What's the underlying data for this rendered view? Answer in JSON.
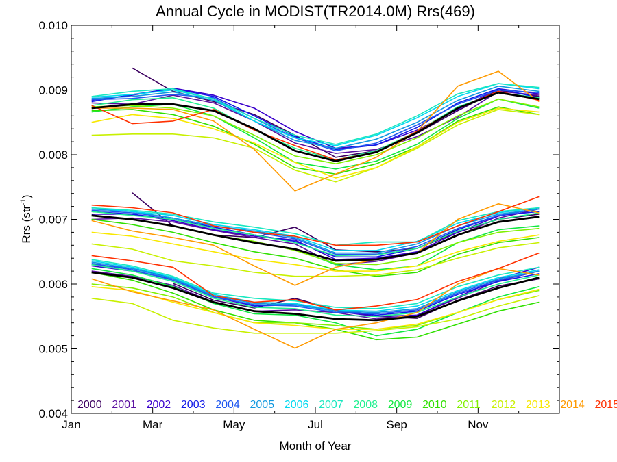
{
  "chart_data": {
    "type": "line",
    "title": "Annual Cycle in MODIST(TR2014.0M) Rrs(469)",
    "xlabel": "Month of Year",
    "ylabel_base": "Rrs (str",
    "ylabel_sup": "-1",
    "ylabel_close": ")",
    "xlim": [
      1,
      13
    ],
    "ylim": [
      0.004,
      0.01
    ],
    "x_ticks": [
      {
        "value": 1,
        "label": "Jan"
      },
      {
        "value": 3,
        "label": "Mar"
      },
      {
        "value": 5,
        "label": "May"
      },
      {
        "value": 7,
        "label": "Jul"
      },
      {
        "value": 9,
        "label": "Sep"
      },
      {
        "value": 11,
        "label": "Nov"
      }
    ],
    "y_ticks": [
      {
        "value": 0.004,
        "label": "0.004"
      },
      {
        "value": 0.005,
        "label": "0.005"
      },
      {
        "value": 0.006,
        "label": "0.006"
      },
      {
        "value": 0.007,
        "label": "0.007"
      },
      {
        "value": 0.008,
        "label": "0.008"
      },
      {
        "value": 0.009,
        "label": "0.009"
      },
      {
        "value": 0.01,
        "label": "0.010"
      }
    ],
    "grid": false,
    "legend_placement": "bottom",
    "months": [
      1.5,
      2.5,
      3.5,
      4.5,
      5.5,
      6.5,
      7.5,
      8.5,
      9.5,
      10.5,
      11.5,
      12.5
    ],
    "series": [
      {
        "name": "2000",
        "color": "#3c0060",
        "upper": [
          null,
          0.00934,
          0.00898,
          0.00882,
          0.00862,
          0.0083,
          0.00796,
          0.00806,
          0.00833,
          0.00868,
          0.009,
          0.0089
        ],
        "middle": [
          null,
          0.00741,
          0.0069,
          0.00676,
          0.00672,
          0.00688,
          0.00653,
          0.0065,
          0.00655,
          0.0068,
          0.007,
          0.00708
        ],
        "lower": [
          null,
          null,
          0.00601,
          0.00575,
          0.00563,
          0.00578,
          0.0056,
          0.0055,
          0.00547,
          0.00575,
          0.00597,
          0.00608
        ]
      },
      {
        "name": "2001",
        "color": "#5a10a0",
        "upper": [
          0.0088,
          0.00878,
          0.00892,
          0.0088,
          0.00852,
          0.00818,
          0.00802,
          0.00808,
          0.00828,
          0.00858,
          0.00898,
          0.00892
        ],
        "middle": [
          0.007,
          0.00702,
          0.00696,
          0.00683,
          0.00672,
          0.00662,
          0.0063,
          0.00635,
          0.00648,
          0.00675,
          0.00702,
          0.00716
        ],
        "lower": [
          0.0062,
          0.00612,
          0.00598,
          0.00572,
          0.00558,
          0.0056,
          0.00556,
          0.00546,
          0.00552,
          0.00578,
          0.00605,
          0.0062
        ]
      },
      {
        "name": "2002",
        "color": "#3a00cc",
        "upper": [
          0.00884,
          0.00892,
          0.00903,
          0.00892,
          0.00872,
          0.00836,
          0.0081,
          0.00815,
          0.00838,
          0.0087,
          0.00902,
          0.00894
        ],
        "middle": [
          0.00708,
          0.00708,
          0.00698,
          0.00684,
          0.00674,
          0.00668,
          0.00638,
          0.0064,
          0.0065,
          0.0068,
          0.00705,
          0.00718
        ],
        "lower": [
          0.00628,
          0.0062,
          0.00608,
          0.0058,
          0.00566,
          0.0057,
          0.00558,
          0.0055,
          0.00552,
          0.0058,
          0.00608,
          0.00626
        ]
      },
      {
        "name": "2003",
        "color": "#1018e8",
        "upper": [
          0.00882,
          0.00893,
          0.00902,
          0.0089,
          0.0086,
          0.00828,
          0.00808,
          0.00815,
          0.00842,
          0.0088,
          0.00902,
          0.00888
        ],
        "middle": [
          0.00712,
          0.00708,
          0.007,
          0.00688,
          0.00676,
          0.00666,
          0.00642,
          0.00642,
          0.00655,
          0.00684,
          0.00706,
          0.00712
        ],
        "lower": [
          0.0063,
          0.00624,
          0.0061,
          0.00582,
          0.00566,
          0.00568,
          0.0056,
          0.00552,
          0.00558,
          0.00584,
          0.00604,
          0.00616
        ]
      },
      {
        "name": "2004",
        "color": "#2058f0",
        "upper": [
          0.00885,
          0.00887,
          0.00893,
          0.00888,
          0.00856,
          0.00826,
          0.00806,
          0.00818,
          0.00846,
          0.00878,
          0.009,
          0.00896
        ],
        "middle": [
          0.00714,
          0.0071,
          0.00702,
          0.0069,
          0.0068,
          0.0067,
          0.00646,
          0.00646,
          0.00658,
          0.00686,
          0.00706,
          0.00716
        ],
        "lower": [
          0.00632,
          0.00622,
          0.00606,
          0.0058,
          0.00568,
          0.00566,
          0.00556,
          0.00554,
          0.0056,
          0.00586,
          0.00606,
          0.0062
        ]
      },
      {
        "name": "2005",
        "color": "#1098e0",
        "upper": [
          0.00887,
          0.0089,
          0.00897,
          0.00884,
          0.00852,
          0.00822,
          0.0081,
          0.00824,
          0.0085,
          0.00884,
          0.00906,
          0.00898
        ],
        "middle": [
          0.00716,
          0.00712,
          0.00702,
          0.0069,
          0.00682,
          0.00672,
          0.00648,
          0.00648,
          0.00662,
          0.0069,
          0.00708,
          0.00716
        ],
        "lower": [
          0.00634,
          0.00624,
          0.00608,
          0.00582,
          0.0057,
          0.00568,
          0.00558,
          0.00556,
          0.00562,
          0.00588,
          0.00608,
          0.0062
        ]
      },
      {
        "name": "2006",
        "color": "#00d8f0",
        "upper": [
          0.00889,
          0.00893,
          0.009,
          0.00886,
          0.00852,
          0.00826,
          0.00814,
          0.0083,
          0.00857,
          0.0089,
          0.0091,
          0.00902
        ],
        "middle": [
          0.00718,
          0.00712,
          0.00706,
          0.00692,
          0.00684,
          0.00674,
          0.00652,
          0.00652,
          0.00666,
          0.00694,
          0.0071,
          0.00718
        ],
        "lower": [
          0.00636,
          0.00626,
          0.0061,
          0.00584,
          0.00572,
          0.0057,
          0.0056,
          0.00558,
          0.00566,
          0.0059,
          0.0061,
          0.00622
        ]
      },
      {
        "name": "2007",
        "color": "#18e8c0",
        "upper": [
          0.0089,
          0.00898,
          0.00902,
          0.00886,
          0.00856,
          0.0083,
          0.00816,
          0.00832,
          0.0086,
          0.00894,
          0.0091,
          0.00904
        ],
        "middle": [
          0.00718,
          0.00714,
          0.00708,
          0.00696,
          0.00688,
          0.00678,
          0.0066,
          0.00665,
          0.00665,
          0.00698,
          0.00712,
          0.00718
        ],
        "lower": [
          0.00638,
          0.00628,
          0.00612,
          0.00586,
          0.00578,
          0.00574,
          0.00564,
          0.00562,
          0.0057,
          0.00596,
          0.00614,
          0.00626
        ]
      },
      {
        "name": "2008",
        "color": "#20f090",
        "upper": [
          0.00876,
          0.00885,
          0.00888,
          0.00872,
          0.00838,
          0.0081,
          0.00792,
          0.00806,
          0.00836,
          0.00874,
          0.00896,
          0.00888
        ],
        "middle": [
          0.00712,
          0.00706,
          0.007,
          0.00686,
          0.00676,
          0.00664,
          0.00644,
          0.00645,
          0.00655,
          0.00682,
          0.007,
          0.0071
        ],
        "lower": [
          0.0063,
          0.0062,
          0.00604,
          0.00578,
          0.00564,
          0.00562,
          0.00552,
          0.0055,
          0.00556,
          0.0058,
          0.006,
          0.00614
        ]
      },
      {
        "name": "2009",
        "color": "#10e840",
        "upper": [
          0.00866,
          0.00874,
          0.00878,
          0.0086,
          0.00826,
          0.00788,
          0.00778,
          0.0079,
          0.00816,
          0.00856,
          0.00886,
          0.00872
        ],
        "middle": [
          0.00706,
          0.007,
          0.0069,
          0.00676,
          0.00664,
          0.00654,
          0.0063,
          0.00622,
          0.00628,
          0.00664,
          0.00684,
          0.0069
        ],
        "lower": [
          0.00624,
          0.00614,
          0.00596,
          0.0057,
          0.00554,
          0.00552,
          0.0054,
          0.0052,
          0.0053,
          0.00556,
          0.0058,
          0.00596
        ]
      },
      {
        "name": "2010",
        "color": "#30e000",
        "upper": [
          0.00868,
          0.0087,
          0.00862,
          0.00844,
          0.00816,
          0.0078,
          0.0077,
          0.00786,
          0.00812,
          0.00852,
          0.00874,
          0.00862
        ],
        "middle": [
          0.007,
          0.00692,
          0.0068,
          0.00664,
          0.0065,
          0.0064,
          0.00622,
          0.00612,
          0.00618,
          0.00646,
          0.00664,
          0.00672
        ],
        "lower": [
          0.00618,
          0.00606,
          0.00586,
          0.0056,
          0.00544,
          0.0054,
          0.0053,
          0.00514,
          0.00518,
          0.00538,
          0.00558,
          0.00572
        ]
      },
      {
        "name": "2011",
        "color": "#80f000",
        "upper": [
          0.00874,
          0.00876,
          0.00872,
          0.0086,
          0.0083,
          0.00798,
          0.00786,
          0.008,
          0.00826,
          0.0086,
          0.00886,
          0.00874
        ],
        "middle": [
          0.00706,
          0.007,
          0.0069,
          0.00676,
          0.00666,
          0.00652,
          0.00632,
          0.0063,
          0.0064,
          0.00664,
          0.0068,
          0.00686
        ],
        "lower": [
          0.006,
          0.00594,
          0.0058,
          0.00556,
          0.0054,
          0.0054,
          0.00536,
          0.0053,
          0.00536,
          0.00556,
          0.00576,
          0.0059
        ]
      },
      {
        "name": "2012",
        "color": "#c8f000",
        "upper": [
          0.0083,
          0.00832,
          0.00832,
          0.00826,
          0.0081,
          0.00776,
          0.00758,
          0.0078,
          0.0081,
          0.00846,
          0.0087,
          0.00862
        ],
        "middle": [
          0.00662,
          0.00654,
          0.00636,
          0.00628,
          0.00618,
          0.00612,
          0.00612,
          0.00614,
          0.00622,
          0.0064,
          0.00656,
          0.00664
        ],
        "lower": [
          0.00578,
          0.0057,
          0.00544,
          0.00532,
          0.00524,
          0.00524,
          0.00524,
          0.00528,
          0.00534,
          0.00546,
          0.00566,
          0.00582
        ]
      },
      {
        "name": "2013",
        "color": "#f8e800",
        "upper": [
          0.0085,
          0.00862,
          0.00856,
          0.0084,
          0.00818,
          0.00788,
          0.00764,
          0.0078,
          0.00812,
          0.0085,
          0.00872,
          0.00866
        ],
        "middle": [
          0.0068,
          0.00674,
          0.00662,
          0.0065,
          0.00638,
          0.0063,
          0.0062,
          0.0062,
          0.00628,
          0.0065,
          0.00666,
          0.00676
        ],
        "lower": [
          0.00596,
          0.0059,
          0.00572,
          0.00556,
          0.0054,
          0.00536,
          0.0053,
          0.0053,
          0.00538,
          0.00556,
          0.00576,
          0.00592
        ]
      },
      {
        "name": "2014",
        "color": "#ff9a00",
        "upper": [
          0.00872,
          0.00872,
          0.0087,
          0.00852,
          0.00808,
          0.00744,
          0.0077,
          0.00796,
          0.00836,
          0.00906,
          0.00929,
          0.00882
        ],
        "middle": [
          0.00698,
          0.00682,
          0.00672,
          0.0066,
          0.00628,
          0.00598,
          0.00626,
          0.00638,
          0.00648,
          0.007,
          0.00724,
          0.0071
        ],
        "lower": [
          0.00608,
          0.00588,
          0.00574,
          0.0056,
          0.0053,
          0.00501,
          0.0053,
          0.0054,
          0.00556,
          0.006,
          0.00624,
          0.00614
        ]
      },
      {
        "name": "2015",
        "color": "#ff3000",
        "upper": [
          0.00876,
          0.00848,
          0.00852,
          0.0087,
          0.00838,
          0.00814,
          0.00792,
          0.00804,
          0.00836,
          0.00872,
          0.00898,
          0.00884
        ],
        "middle": [
          0.00722,
          0.00718,
          0.0071,
          0.0069,
          0.0068,
          0.00674,
          0.0066,
          0.0066,
          0.00665,
          0.0069,
          0.00712,
          0.00735
        ],
        "lower": [
          0.00644,
          0.00636,
          0.00626,
          0.00582,
          0.00572,
          0.00576,
          0.0056,
          0.00566,
          0.00576,
          0.00604,
          0.00624,
          0.00648
        ]
      }
    ],
    "climatology": {
      "color": "#000000",
      "upper": [
        0.00872,
        0.00878,
        0.00878,
        0.00868,
        0.0084,
        0.00806,
        0.0079,
        0.00804,
        0.00834,
        0.00872,
        0.00896,
        0.00886
      ],
      "middle": [
        0.00706,
        0.007,
        0.0069,
        0.00676,
        0.00664,
        0.00654,
        0.00636,
        0.00638,
        0.00648,
        0.00676,
        0.00696,
        0.00704
      ],
      "lower": [
        0.00618,
        0.0061,
        0.00594,
        0.00572,
        0.00558,
        0.00554,
        0.00546,
        0.00544,
        0.0055,
        0.00574,
        0.00594,
        0.0061
      ]
    }
  }
}
